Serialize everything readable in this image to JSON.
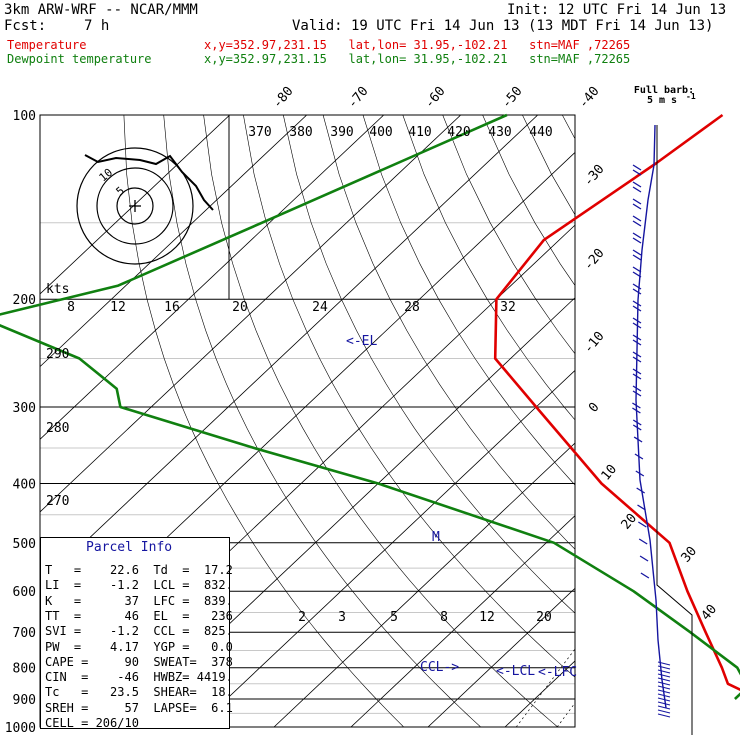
{
  "header": {
    "model": "3km ARW-WRF -- NCAR/MMM",
    "init": "Init: 12 UTC Fri 14 Jun 13",
    "fcst_label": "Fcst:",
    "fcst_value": "7 h",
    "valid": "Valid: 19 UTC Fri 14 Jun 13 (13 MDT Fri 14 Jun 13)",
    "temp_label": "Temperature",
    "dew_label": "Dewpoint temperature",
    "temp_info": "x,y=352.97,231.15   lat,lon= 31.95,-102.21   stn=MAF ,72265",
    "dew_info": "x,y=352.97,231.15   lat,lon= 31.95,-102.21   stn=MAF ,72265"
  },
  "colors": {
    "temperature": "#e00000",
    "dewpoint": "#108010",
    "parcel": "#1515a0",
    "barb": "#1515a0"
  },
  "parcel_info": {
    "title": "Parcel Info",
    "rows": [
      "T   =    22.6  Td  =  17.2",
      "LI  =    -1.2  LCL =  832.",
      "K   =      37  LFC =  839.",
      "TT  =      46  EL  =   236",
      "SVI =    -1.2  CCL =  825.",
      "PW  =    4.17  YGP =   0.0",
      "CAPE =     90  SWEAT=  378",
      "CIN  =    -46  HWBZ= 4419.",
      "Tc   =   23.5  SHEAR=  18.",
      "SREH =     57  LAPSE=  6.1",
      "CELL = 206/10"
    ]
  },
  "labels": {
    "el": "<-EL",
    "lcl": "<-LCL",
    "lfc": "<-LFC",
    "ccl": "CCL->",
    "m": "M",
    "kts": "kts",
    "full_barb": "Full barb:",
    "full_barb_unit": "5 m s",
    "full_barb_sup": "-1"
  },
  "chart_data": {
    "type": "line",
    "title": "",
    "y_axis": {
      "ticks": [
        "100",
        "200",
        "300",
        "400",
        "500",
        "600",
        "700",
        "800",
        "900",
        "1000"
      ]
    },
    "x_axis": {
      "ticks": [
        "-80",
        "-70",
        "-60",
        "-50",
        "-40",
        "-30",
        "-20",
        "-10",
        "0",
        "10",
        "20",
        "30",
        "40"
      ]
    },
    "theta_labels": [
      "370",
      "380",
      "390",
      "400",
      "410",
      "420",
      "430",
      "440"
    ],
    "mixing_ratio_labels_upper": [
      "8",
      "12",
      "16",
      "20",
      "24",
      "28",
      "32"
    ],
    "mixing_ratio_labels_lower": [
      "2",
      "3",
      "5",
      "8",
      "12",
      "20"
    ],
    "wind_ring_labels": [
      "10",
      "5"
    ],
    "wind_ring_ticks": [
      "290",
      "280",
      "270"
    ],
    "pressure_levels": [
      100,
      200,
      300,
      400,
      500,
      600,
      700,
      800,
      900,
      1000
    ],
    "series": [
      {
        "name": "Temperature",
        "points": [
          [
            100,
            -66
          ],
          [
            120,
            -68
          ],
          [
            160,
            -72
          ],
          [
            200,
            -70
          ],
          [
            250,
            -62
          ],
          [
            300,
            -50
          ],
          [
            400,
            -31
          ],
          [
            500,
            -14
          ],
          [
            600,
            -5
          ],
          [
            700,
            3
          ],
          [
            800,
            10
          ],
          [
            850,
            13
          ],
          [
            890,
            18
          ],
          [
            900,
            20
          ]
        ]
      },
      {
        "name": "Dewpoint temperature",
        "points": [
          [
            100,
            -94
          ],
          [
            150,
            -111
          ],
          [
            190,
            -121
          ],
          [
            215,
            -134
          ],
          [
            250,
            -116
          ],
          [
            280,
            -107
          ],
          [
            300,
            -104
          ],
          [
            350,
            -81
          ],
          [
            400,
            -60
          ],
          [
            500,
            -29
          ],
          [
            600,
            -12
          ],
          [
            700,
            1
          ],
          [
            800,
            12
          ],
          [
            860,
            16
          ],
          [
            900,
            16
          ]
        ]
      }
    ]
  }
}
